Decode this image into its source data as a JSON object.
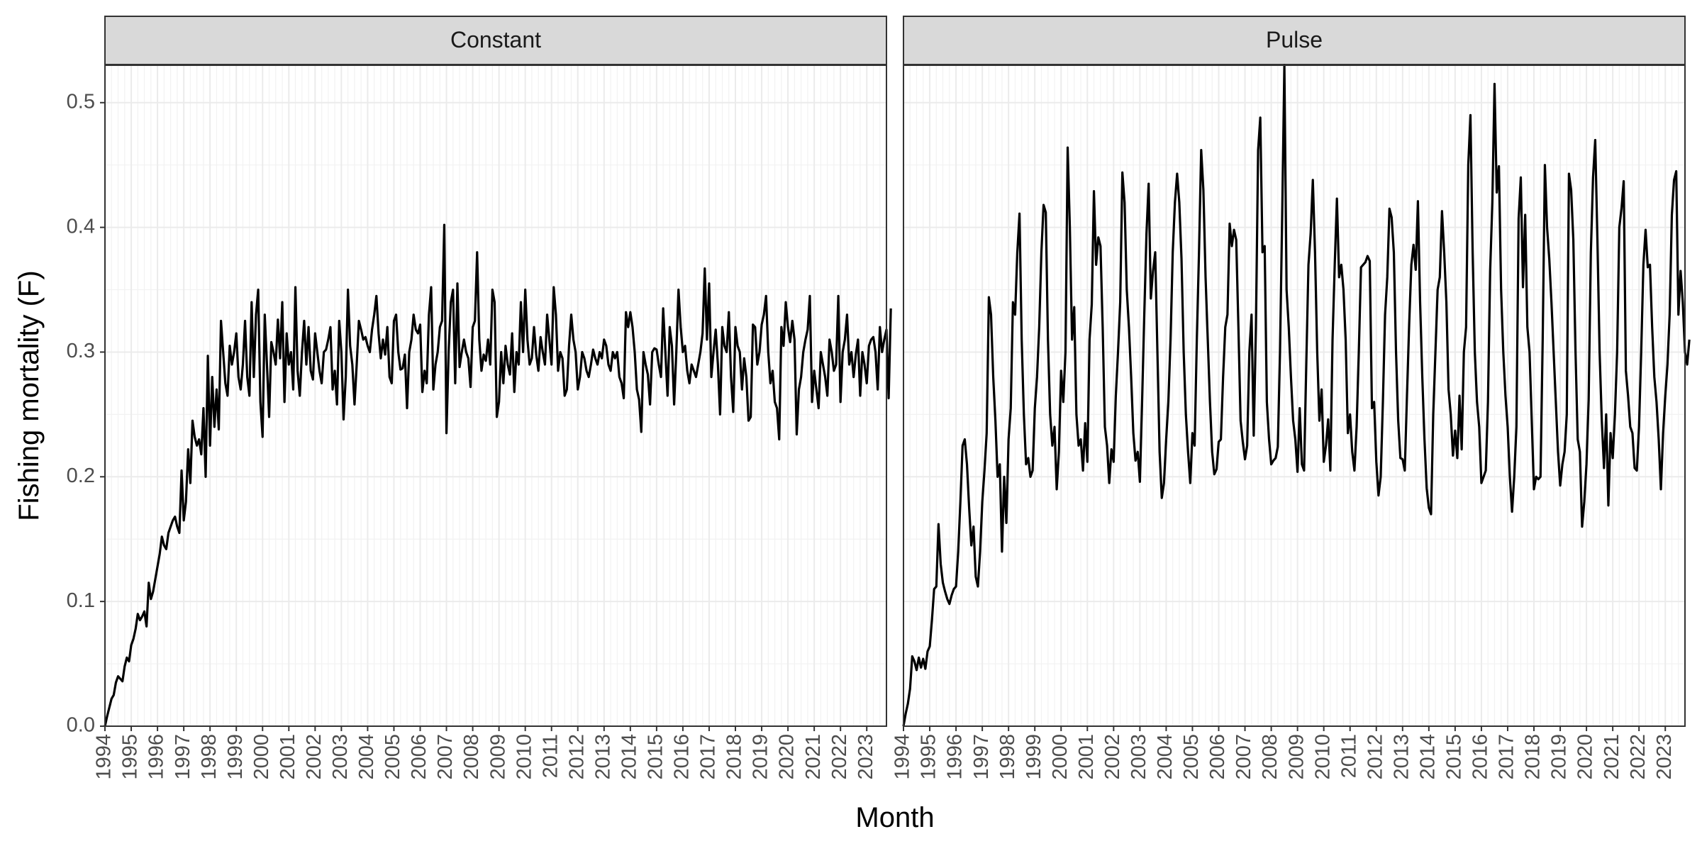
{
  "chart_data": {
    "type": "line",
    "facets": [
      "Constant",
      "Pulse"
    ],
    "xlabel": "Month",
    "ylabel": "Fishing mortality (F)",
    "x_range": [
      1994.0,
      2023.75
    ],
    "ylim": [
      0,
      0.53
    ],
    "y_ticks": [
      0.0,
      0.1,
      0.2,
      0.3,
      0.4,
      0.5
    ],
    "y_tick_labels": [
      "0.0",
      "0.1",
      "0.2",
      "0.3",
      "0.4",
      "0.5"
    ],
    "x_ticks": [
      "1994",
      "1995",
      "1996",
      "1997",
      "1998",
      "1999",
      "2000",
      "2001",
      "2002",
      "2003",
      "2004",
      "2005",
      "2006",
      "2007",
      "2008",
      "2009",
      "2010",
      "2011",
      "2012",
      "2013",
      "2014",
      "2015",
      "2016",
      "2017",
      "2018",
      "2019",
      "2020",
      "2021",
      "2022",
      "2023"
    ],
    "grid": true,
    "line_color": "#000000",
    "panels": [
      {
        "name": "Constant",
        "start": "1994-01",
        "frequency": "monthly",
        "values": [
          0.0,
          0.008,
          0.015,
          0.022,
          0.025,
          0.035,
          0.04,
          0.038,
          0.036,
          0.048,
          0.055,
          0.052,
          0.065,
          0.07,
          0.078,
          0.09,
          0.085,
          0.088,
          0.092,
          0.08,
          0.115,
          0.102,
          0.108,
          0.118,
          0.128,
          0.138,
          0.152,
          0.145,
          0.142,
          0.155,
          0.16,
          0.165,
          0.168,
          0.16,
          0.155,
          0.205,
          0.165,
          0.18,
          0.222,
          0.195,
          0.245,
          0.232,
          0.225,
          0.23,
          0.218,
          0.255,
          0.2,
          0.297,
          0.225,
          0.28,
          0.24,
          0.27,
          0.238,
          0.325,
          0.3,
          0.275,
          0.265,
          0.305,
          0.29,
          0.3,
          0.315,
          0.28,
          0.27,
          0.29,
          0.325,
          0.28,
          0.265,
          0.34,
          0.28,
          0.33,
          0.35,
          0.26,
          0.232,
          0.33,
          0.29,
          0.248,
          0.308,
          0.3,
          0.29,
          0.326,
          0.295,
          0.34,
          0.26,
          0.315,
          0.29,
          0.3,
          0.27,
          0.352,
          0.285,
          0.265,
          0.3,
          0.325,
          0.29,
          0.32,
          0.285,
          0.278,
          0.315,
          0.3,
          0.285,
          0.275,
          0.3,
          0.302,
          0.31,
          0.32,
          0.27,
          0.285,
          0.258,
          0.325,
          0.3,
          0.246,
          0.28,
          0.35,
          0.305,
          0.29,
          0.258,
          0.29,
          0.325,
          0.318,
          0.31,
          0.312,
          0.305,
          0.3,
          0.318,
          0.33,
          0.345,
          0.315,
          0.295,
          0.31,
          0.298,
          0.32,
          0.28,
          0.275,
          0.325,
          0.33,
          0.3,
          0.286,
          0.287,
          0.298,
          0.255,
          0.3,
          0.31,
          0.33,
          0.318,
          0.315,
          0.322,
          0.268,
          0.285,
          0.275,
          0.33,
          0.352,
          0.27,
          0.29,
          0.3,
          0.32,
          0.325,
          0.402,
          0.235,
          0.3,
          0.34,
          0.35,
          0.275,
          0.355,
          0.288,
          0.3,
          0.31,
          0.3,
          0.295,
          0.272,
          0.32,
          0.325,
          0.38,
          0.31,
          0.285,
          0.298,
          0.293,
          0.31,
          0.29,
          0.35,
          0.34,
          0.248,
          0.26,
          0.3,
          0.275,
          0.305,
          0.29,
          0.282,
          0.315,
          0.268,
          0.3,
          0.29,
          0.34,
          0.3,
          0.35,
          0.31,
          0.29,
          0.295,
          0.32,
          0.298,
          0.285,
          0.312,
          0.3,
          0.29,
          0.33,
          0.31,
          0.29,
          0.352,
          0.33,
          0.285,
          0.3,
          0.295,
          0.265,
          0.27,
          0.305,
          0.33,
          0.31,
          0.3,
          0.27,
          0.28,
          0.3,
          0.295,
          0.285,
          0.28,
          0.29,
          0.302,
          0.295,
          0.29,
          0.3,
          0.295,
          0.31,
          0.305,
          0.29,
          0.285,
          0.3,
          0.295,
          0.3,
          0.28,
          0.275,
          0.263,
          0.332,
          0.32,
          0.332,
          0.32,
          0.3,
          0.27,
          0.262,
          0.236,
          0.3,
          0.29,
          0.282,
          0.258,
          0.3,
          0.303,
          0.302,
          0.29,
          0.28,
          0.335,
          0.3,
          0.265,
          0.32,
          0.305,
          0.258,
          0.3,
          0.35,
          0.32,
          0.3,
          0.305,
          0.285,
          0.275,
          0.29,
          0.285,
          0.28,
          0.29,
          0.3,
          0.315,
          0.367,
          0.31,
          0.355,
          0.28,
          0.3,
          0.318,
          0.29,
          0.25,
          0.32,
          0.305,
          0.3,
          0.332,
          0.28,
          0.252,
          0.32,
          0.305,
          0.3,
          0.27,
          0.295,
          0.28,
          0.245,
          0.248,
          0.322,
          0.32,
          0.29,
          0.3,
          0.322,
          0.33,
          0.345,
          0.3,
          0.275,
          0.285,
          0.26,
          0.255,
          0.23,
          0.32,
          0.305,
          0.34,
          0.32,
          0.308,
          0.325,
          0.31,
          0.234,
          0.27,
          0.28,
          0.3,
          0.31,
          0.318,
          0.345,
          0.26,
          0.285,
          0.27,
          0.255,
          0.3,
          0.29,
          0.28,
          0.265,
          0.31,
          0.3,
          0.285,
          0.29,
          0.345,
          0.26,
          0.3,
          0.31,
          0.33,
          0.29,
          0.3,
          0.28,
          0.298,
          0.31,
          0.265,
          0.3,
          0.29,
          0.275,
          0.305,
          0.31,
          0.312,
          0.3,
          0.27,
          0.32,
          0.3,
          0.31,
          0.318,
          0.263,
          0.335
        ]
      },
      {
        "name": "Pulse",
        "start": "1994-01",
        "frequency": "monthly",
        "values": [
          0.0,
          0.01,
          0.018,
          0.03,
          0.056,
          0.052,
          0.045,
          0.055,
          0.047,
          0.054,
          0.046,
          0.06,
          0.064,
          0.085,
          0.11,
          0.112,
          0.162,
          0.13,
          0.115,
          0.108,
          0.102,
          0.098,
          0.105,
          0.11,
          0.112,
          0.14,
          0.18,
          0.225,
          0.23,
          0.21,
          0.175,
          0.145,
          0.16,
          0.12,
          0.112,
          0.14,
          0.18,
          0.205,
          0.235,
          0.344,
          0.33,
          0.28,
          0.245,
          0.2,
          0.21,
          0.14,
          0.2,
          0.163,
          0.23,
          0.255,
          0.34,
          0.33,
          0.38,
          0.411,
          0.31,
          0.25,
          0.21,
          0.215,
          0.2,
          0.205,
          0.255,
          0.28,
          0.32,
          0.38,
          0.418,
          0.412,
          0.31,
          0.25,
          0.225,
          0.24,
          0.19,
          0.22,
          0.285,
          0.26,
          0.3,
          0.464,
          0.4,
          0.31,
          0.336,
          0.25,
          0.225,
          0.23,
          0.205,
          0.243,
          0.212,
          0.31,
          0.338,
          0.429,
          0.37,
          0.392,
          0.385,
          0.32,
          0.24,
          0.225,
          0.195,
          0.222,
          0.212,
          0.265,
          0.3,
          0.34,
          0.444,
          0.42,
          0.35,
          0.32,
          0.28,
          0.235,
          0.213,
          0.22,
          0.196,
          0.26,
          0.33,
          0.395,
          0.435,
          0.343,
          0.365,
          0.38,
          0.3,
          0.22,
          0.183,
          0.195,
          0.23,
          0.26,
          0.31,
          0.38,
          0.42,
          0.443,
          0.42,
          0.375,
          0.3,
          0.25,
          0.22,
          0.195,
          0.235,
          0.225,
          0.31,
          0.38,
          0.462,
          0.43,
          0.36,
          0.31,
          0.26,
          0.22,
          0.202,
          0.206,
          0.228,
          0.23,
          0.28,
          0.32,
          0.33,
          0.403,
          0.385,
          0.398,
          0.39,
          0.32,
          0.245,
          0.228,
          0.214,
          0.225,
          0.3,
          0.33,
          0.233,
          0.32,
          0.462,
          0.488,
          0.38,
          0.385,
          0.26,
          0.23,
          0.21,
          0.213,
          0.215,
          0.224,
          0.3,
          0.41,
          0.53,
          0.35,
          0.32,
          0.28,
          0.245,
          0.23,
          0.204,
          0.255,
          0.21,
          0.205,
          0.29,
          0.37,
          0.395,
          0.438,
          0.38,
          0.3,
          0.245,
          0.27,
          0.212,
          0.225,
          0.246,
          0.205,
          0.31,
          0.37,
          0.423,
          0.36,
          0.37,
          0.35,
          0.31,
          0.235,
          0.25,
          0.22,
          0.205,
          0.24,
          0.3,
          0.368,
          0.37,
          0.372,
          0.377,
          0.373,
          0.255,
          0.26,
          0.212,
          0.185,
          0.2,
          0.26,
          0.33,
          0.36,
          0.415,
          0.408,
          0.38,
          0.3,
          0.245,
          0.215,
          0.214,
          0.205,
          0.265,
          0.322,
          0.37,
          0.386,
          0.366,
          0.421,
          0.34,
          0.28,
          0.23,
          0.191,
          0.175,
          0.17,
          0.25,
          0.3,
          0.35,
          0.36,
          0.413,
          0.38,
          0.34,
          0.27,
          0.25,
          0.217,
          0.237,
          0.215,
          0.265,
          0.222,
          0.3,
          0.32,
          0.45,
          0.49,
          0.38,
          0.3,
          0.26,
          0.24,
          0.195,
          0.2,
          0.205,
          0.26,
          0.365,
          0.42,
          0.515,
          0.428,
          0.449,
          0.35,
          0.3,
          0.265,
          0.24,
          0.2,
          0.172,
          0.2,
          0.24,
          0.407,
          0.44,
          0.352,
          0.41,
          0.32,
          0.3,
          0.245,
          0.19,
          0.2,
          0.198,
          0.2,
          0.31,
          0.45,
          0.4,
          0.375,
          0.34,
          0.3,
          0.26,
          0.22,
          0.193,
          0.21,
          0.22,
          0.25,
          0.443,
          0.43,
          0.39,
          0.3,
          0.23,
          0.22,
          0.16,
          0.18,
          0.21,
          0.262,
          0.38,
          0.44,
          0.47,
          0.39,
          0.3,
          0.245,
          0.207,
          0.25,
          0.177,
          0.235,
          0.215,
          0.25,
          0.3,
          0.4,
          0.415,
          0.437,
          0.285,
          0.265,
          0.24,
          0.235,
          0.207,
          0.205,
          0.24,
          0.3,
          0.37,
          0.398,
          0.368,
          0.37,
          0.32,
          0.28,
          0.26,
          0.23,
          0.19,
          0.235,
          0.265,
          0.29,
          0.33,
          0.41,
          0.438,
          0.445,
          0.33,
          0.365,
          0.34,
          0.3,
          0.29,
          0.31
        ]
      }
    ]
  }
}
